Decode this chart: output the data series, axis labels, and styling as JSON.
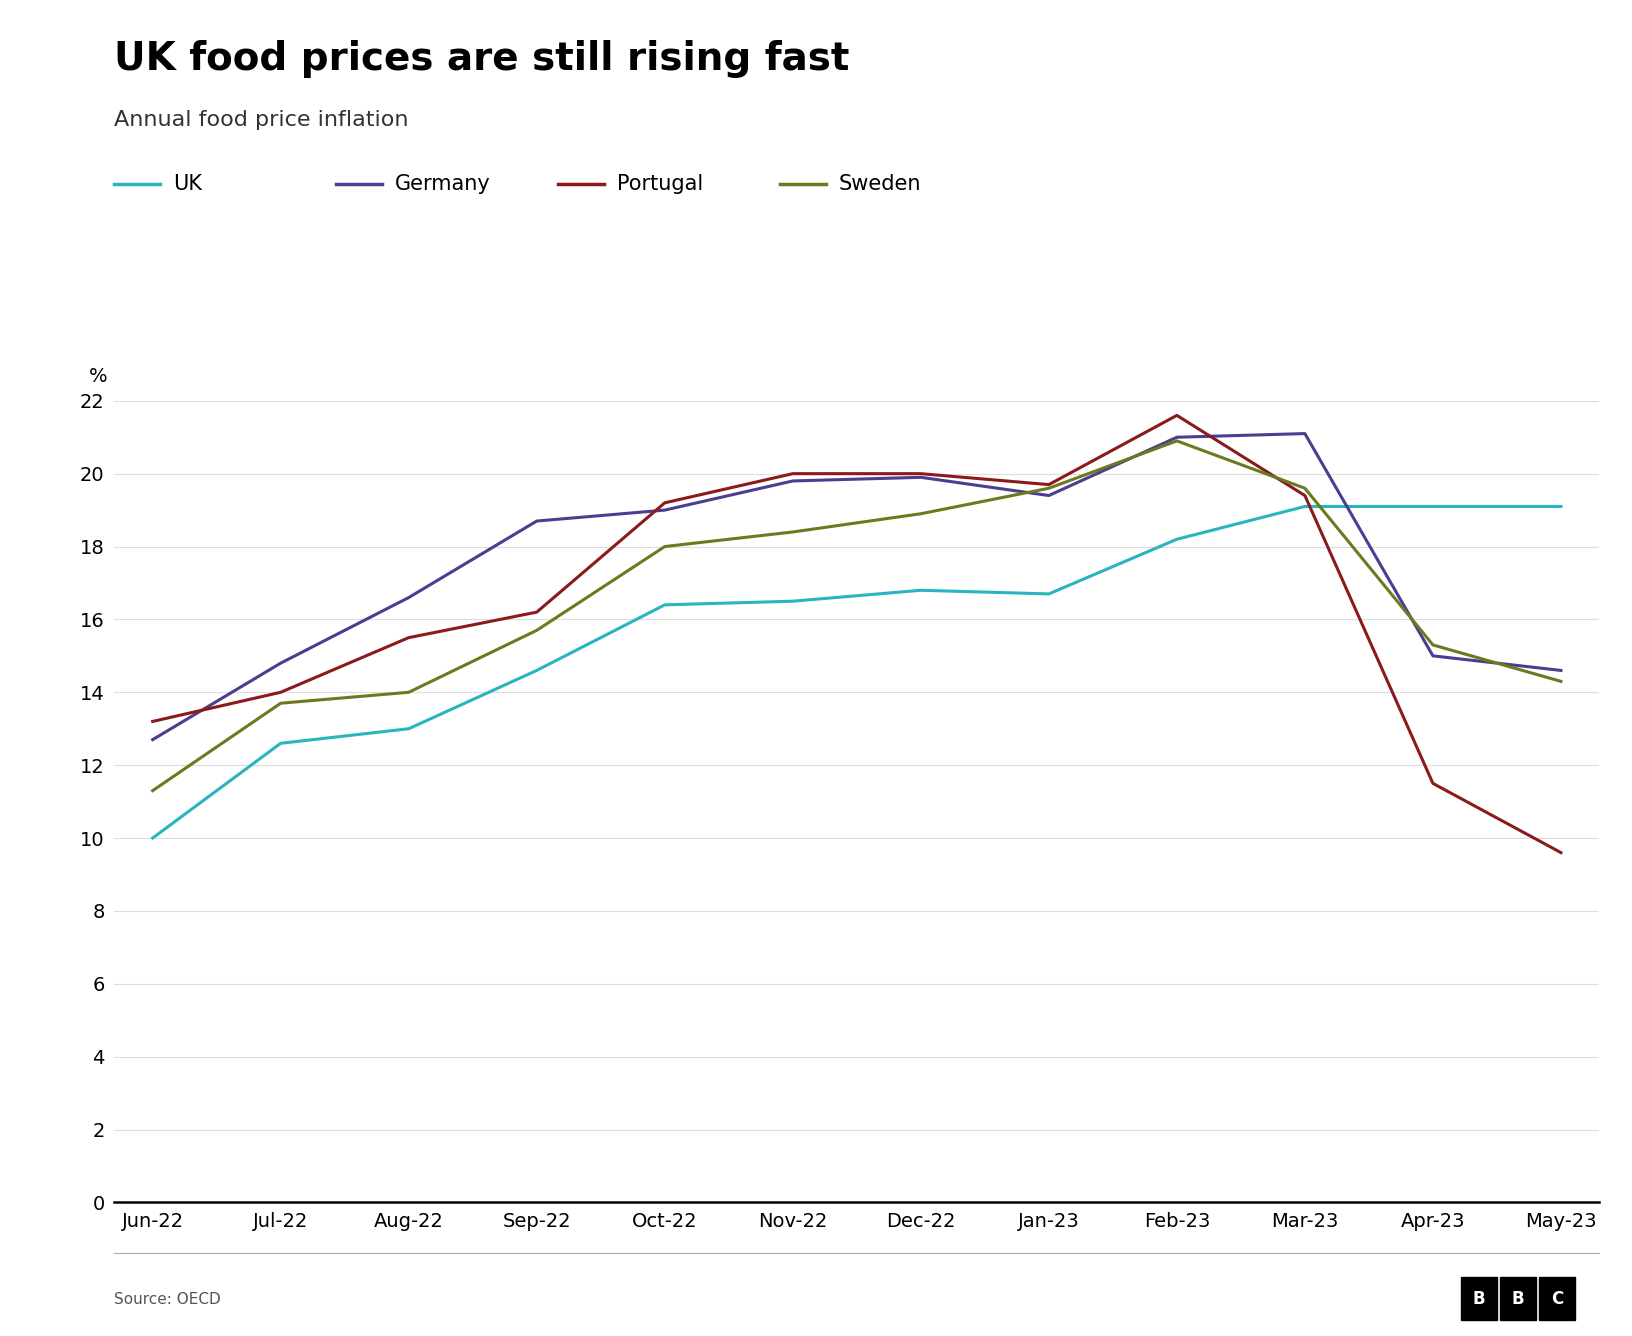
{
  "title": "UK food prices are still rising fast",
  "subtitle": "Annual food price inflation",
  "ylabel": "%",
  "source": "Source: OECD",
  "x_labels": [
    "Jun-22",
    "Jul-22",
    "Aug-22",
    "Sep-22",
    "Oct-22",
    "Nov-22",
    "Dec-22",
    "Jan-23",
    "Feb-23",
    "Mar-23",
    "Apr-23",
    "May-23"
  ],
  "ylim": [
    0,
    22
  ],
  "yticks": [
    0,
    2,
    4,
    6,
    8,
    10,
    12,
    14,
    16,
    18,
    20,
    22
  ],
  "series": [
    {
      "name": "UK",
      "color": "#2ab4c0",
      "values": [
        10.0,
        12.6,
        13.0,
        14.6,
        16.4,
        16.5,
        16.8,
        16.7,
        18.2,
        19.1,
        19.1,
        19.1
      ]
    },
    {
      "name": "Germany",
      "color": "#4b3d8f",
      "values": [
        12.7,
        14.8,
        16.6,
        18.7,
        19.0,
        19.8,
        19.9,
        19.4,
        21.0,
        21.1,
        15.0,
        14.6
      ]
    },
    {
      "name": "Portugal",
      "color": "#8b1a1a",
      "values": [
        13.2,
        14.0,
        15.5,
        16.2,
        19.2,
        20.0,
        20.0,
        19.7,
        21.6,
        19.4,
        11.5,
        9.6
      ]
    },
    {
      "name": "Sweden",
      "color": "#6b7a1e",
      "values": [
        11.3,
        13.7,
        14.0,
        15.7,
        18.0,
        18.4,
        18.9,
        19.6,
        20.9,
        19.6,
        15.3,
        14.3
      ]
    }
  ],
  "background_color": "#ffffff",
  "title_fontsize": 28,
  "subtitle_fontsize": 16,
  "legend_fontsize": 15,
  "tick_fontsize": 14,
  "linewidth": 2.2
}
